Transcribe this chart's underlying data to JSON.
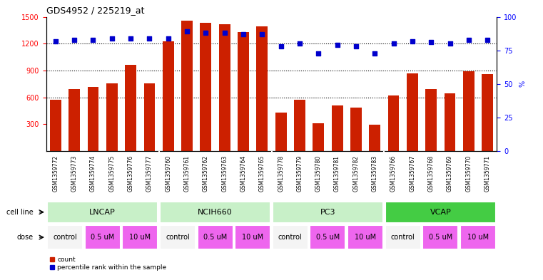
{
  "title": "GDS4952 / 225219_at",
  "samples": [
    "GSM1359772",
    "GSM1359773",
    "GSM1359774",
    "GSM1359775",
    "GSM1359776",
    "GSM1359777",
    "GSM1359760",
    "GSM1359761",
    "GSM1359762",
    "GSM1359763",
    "GSM1359764",
    "GSM1359765",
    "GSM1359778",
    "GSM1359779",
    "GSM1359780",
    "GSM1359781",
    "GSM1359782",
    "GSM1359783",
    "GSM1359766",
    "GSM1359767",
    "GSM1359768",
    "GSM1359769",
    "GSM1359770",
    "GSM1359771"
  ],
  "counts": [
    575,
    690,
    715,
    760,
    960,
    760,
    1230,
    1460,
    1430,
    1420,
    1330,
    1390,
    430,
    575,
    310,
    510,
    490,
    295,
    620,
    870,
    690,
    645,
    890,
    860
  ],
  "percentile_ranks": [
    82,
    83,
    83,
    84,
    84,
    84,
    84,
    89,
    88,
    88,
    87,
    87,
    78,
    80,
    73,
    79,
    78,
    73,
    80,
    82,
    81,
    80,
    83,
    83
  ],
  "cell_line_groups": [
    {
      "name": "LNCAP",
      "start": 0,
      "end": 6,
      "color": "#c8f0c8"
    },
    {
      "name": "NCIH660",
      "start": 6,
      "end": 12,
      "color": "#c8f0c8"
    },
    {
      "name": "PC3",
      "start": 12,
      "end": 18,
      "color": "#c8f0c8"
    },
    {
      "name": "VCAP",
      "start": 18,
      "end": 24,
      "color": "#44cc44"
    }
  ],
  "dose_groups": [
    {
      "label": "control",
      "color": "#f4f4f4"
    },
    {
      "label": "0.5 uM",
      "color": "#ee66ee"
    },
    {
      "label": "10 uM",
      "color": "#ee66ee"
    }
  ],
  "bar_color": "#cc2000",
  "dot_color": "#0000cc",
  "ylim_left": [
    0,
    1500
  ],
  "ylim_right": [
    0,
    100
  ],
  "yticks_left": [
    300,
    600,
    900,
    1200,
    1500
  ],
  "yticks_right": [
    0,
    25,
    50,
    75,
    100
  ],
  "grid_values": [
    600,
    900,
    1200
  ],
  "plot_bg": "#ffffff",
  "tick_area_bg": "#d8d8d8",
  "label_fontsize": 7,
  "tick_fontsize": 6,
  "sample_fontsize": 5.5,
  "cell_line_fontsize": 8,
  "dose_fontsize": 7
}
